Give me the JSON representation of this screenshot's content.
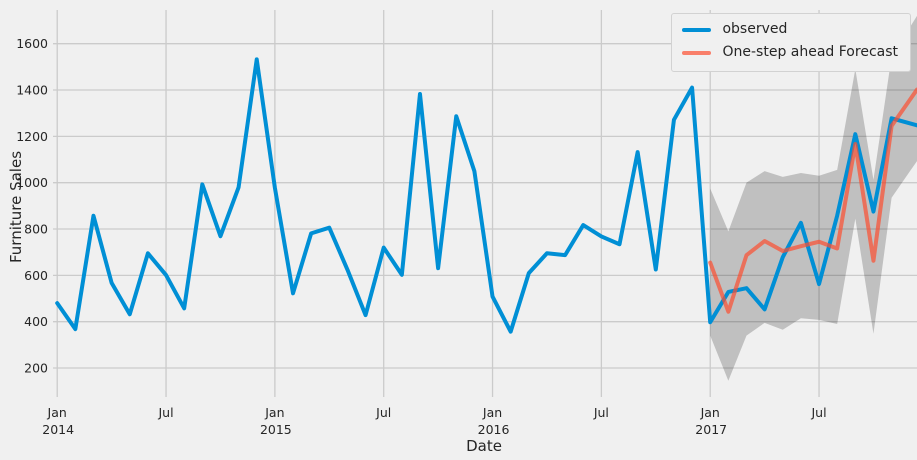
{
  "chart_data": {
    "type": "line",
    "title": "",
    "xlabel": "Date",
    "ylabel": "Furniture Sales",
    "grid": true,
    "legend_position": "upper right",
    "background_color": "#f0f0f0",
    "grid_color": "#cbcbcb",
    "text_color": "#262626",
    "ylim": [
      75,
      1755
    ],
    "yticks": [
      200,
      400,
      600,
      800,
      1000,
      1200,
      1400,
      1600
    ],
    "xticks": [
      {
        "label": "Jan",
        "year": "2014",
        "month_index": 0
      },
      {
        "label": "Jul",
        "year": "",
        "month_index": 6
      },
      {
        "label": "Jan",
        "year": "2015",
        "month_index": 12
      },
      {
        "label": "Jul",
        "year": "",
        "month_index": 18
      },
      {
        "label": "Jan",
        "year": "2016",
        "month_index": 24
      },
      {
        "label": "Jul",
        "year": "",
        "month_index": 30
      },
      {
        "label": "Jan",
        "year": "2017",
        "month_index": 36
      },
      {
        "label": "Jul",
        "year": "",
        "month_index": 42
      }
    ],
    "x_months": [
      "2014-01",
      "2014-02",
      "2014-03",
      "2014-04",
      "2014-05",
      "2014-06",
      "2014-07",
      "2014-08",
      "2014-09",
      "2014-10",
      "2014-11",
      "2014-12",
      "2015-01",
      "2015-02",
      "2015-03",
      "2015-04",
      "2015-05",
      "2015-06",
      "2015-07",
      "2015-08",
      "2015-09",
      "2015-10",
      "2015-11",
      "2015-12",
      "2016-01",
      "2016-02",
      "2016-03",
      "2016-04",
      "2016-05",
      "2016-06",
      "2016-07",
      "2016-08",
      "2016-09",
      "2016-10",
      "2016-11",
      "2016-12",
      "2017-01",
      "2017-02",
      "2017-03",
      "2017-04",
      "2017-05",
      "2017-06",
      "2017-07",
      "2017-08",
      "2017-09",
      "2017-10",
      "2017-11",
      "2017-12"
    ],
    "series": [
      {
        "name": "observed",
        "color": "#008fd5",
        "alpha": 1,
        "start_index": 0,
        "values": [
          480.2,
          367.9,
          857.3,
          567.5,
          432.0,
          695.1,
          601.2,
          457.5,
          992.4,
          769.0,
          980.2,
          1532.3,
          978.3,
          522.4,
          781.1,
          805.7,
          624.5,
          428.4,
          719.7,
          602.4,
          1382.8,
          630.9,
          1286.7,
          1049.4,
          508.2,
          356.9,
          609.6,
          695.4,
          687.3,
          816.9,
          768.0,
          734.3,
          1131.8,
          625.2,
          1271.3,
          1410.4,
          397.6,
          528.2,
          544.7,
          453.3,
          678.3,
          826.5,
          562.5,
          857.9,
          1209.5,
          875.4,
          1277.8,
          1256.3
        ]
      },
      {
        "name": "One-step ahead Forecast",
        "color": "#fc4f30",
        "alpha": 0.7,
        "start_index": 36,
        "values": [
          655,
          443,
          687,
          748,
          705,
          726,
          745,
          716,
          1167,
          663,
          1245,
          1357
        ]
      }
    ],
    "confidence_band": {
      "start_index": 36,
      "color": "rgba(0,0,0,0.2)",
      "lower": [
        340,
        145,
        340,
        395,
        365,
        415,
        408,
        390,
        845,
        348,
        935,
        1048
      ],
      "upper": [
        975,
        790,
        1000,
        1050,
        1025,
        1042,
        1030,
        1055,
        1490,
        1012,
        1545,
        1670
      ]
    },
    "legend_items": [
      {
        "label": "observed",
        "color_css": "#008fd5"
      },
      {
        "label": "One-step ahead Forecast",
        "color_css": "rgba(252,79,48,0.7)"
      }
    ]
  }
}
